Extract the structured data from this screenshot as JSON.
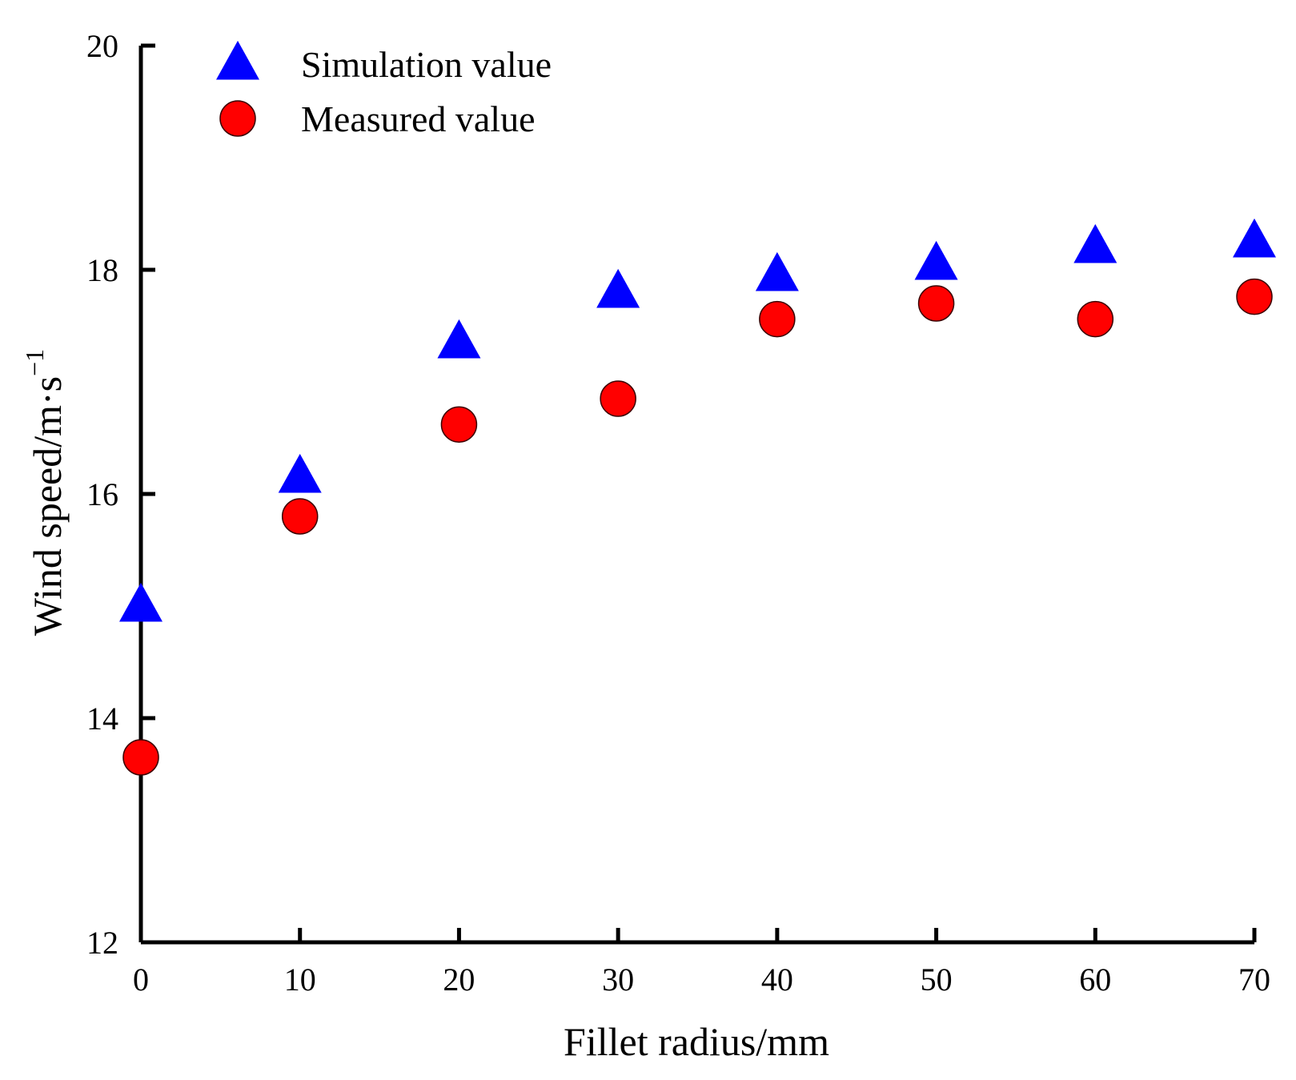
{
  "chart_data": {
    "type": "scatter",
    "title": "",
    "xlabel": "Fillet radius/mm",
    "ylabel": "Wind speed/m·s",
    "ylabel_superscript": "−1",
    "xlim": [
      0,
      70
    ],
    "ylim": [
      12,
      20
    ],
    "xticks": [
      0,
      10,
      20,
      30,
      40,
      50,
      60,
      70
    ],
    "yticks": [
      12,
      14,
      16,
      18,
      20
    ],
    "grid": false,
    "legend_position": "top-left",
    "series": [
      {
        "name": "Simulation value",
        "marker": "triangle",
        "color": "#0000ff",
        "x": [
          0,
          10,
          20,
          30,
          40,
          50,
          60,
          70
        ],
        "y": [
          15.0,
          16.15,
          17.35,
          17.8,
          17.95,
          18.05,
          18.2,
          18.25
        ]
      },
      {
        "name": "Measured value",
        "marker": "circle",
        "color": "#ff0000",
        "x": [
          0,
          10,
          20,
          30,
          40,
          50,
          60,
          70
        ],
        "y": [
          13.65,
          15.8,
          16.62,
          16.85,
          17.56,
          17.7,
          17.56,
          17.76
        ]
      }
    ]
  }
}
